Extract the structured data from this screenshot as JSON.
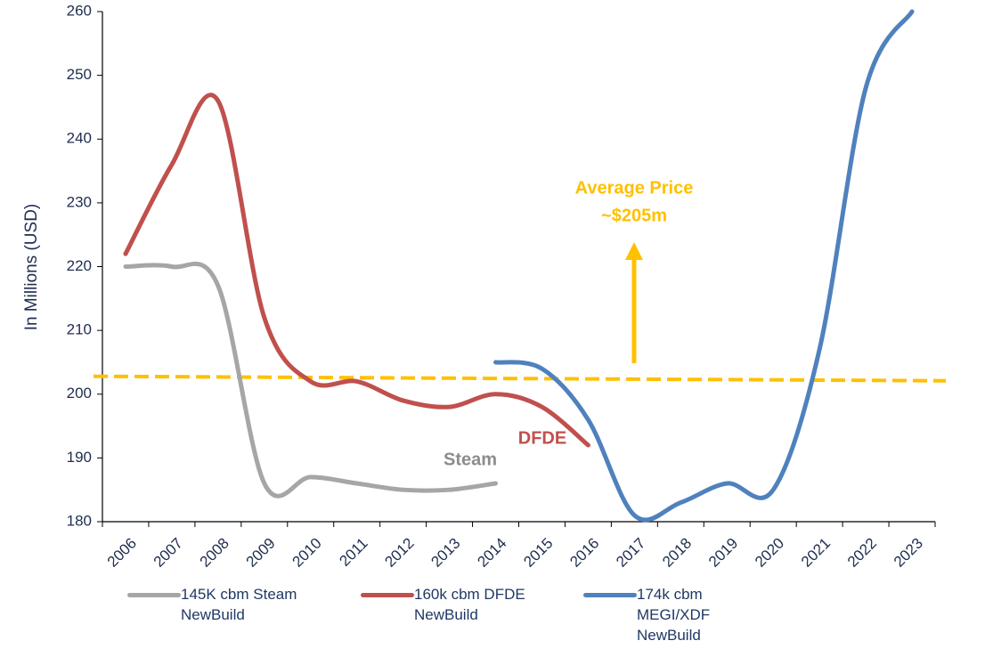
{
  "chart_data": {
    "type": "line",
    "y_label": "In Millions (USD)",
    "categories": [
      "2006",
      "2007",
      "2008",
      "2009",
      "2010",
      "2011",
      "2012",
      "2013",
      "2014",
      "2015",
      "2016",
      "2017",
      "2018",
      "2019",
      "2020",
      "2021",
      "2022",
      "2023"
    ],
    "series": [
      {
        "name": "145K cbm Steam NewBuild",
        "color": "#a6a6a6",
        "values": [
          220,
          220,
          217,
          186,
          187,
          186,
          185,
          185,
          186,
          null,
          null,
          null,
          null,
          null,
          null,
          null,
          null,
          null
        ]
      },
      {
        "name": "160k cbm DFDE NewBuild",
        "color": "#c0504d",
        "values": [
          222,
          236,
          246,
          212,
          202,
          202,
          199,
          198,
          200,
          198,
          192,
          null,
          null,
          null,
          null,
          null,
          null,
          null
        ]
      },
      {
        "name": "174k cbm MEGI/XDF NewBuild",
        "color": "#4f81bd",
        "values": [
          null,
          null,
          null,
          null,
          null,
          null,
          null,
          null,
          205,
          204,
          196,
          181,
          183,
          186,
          185,
          207,
          248,
          260
        ]
      }
    ],
    "average_line": {
      "values": [
        202.8,
        202.1
      ],
      "color": "#ffc000"
    },
    "annotations": {
      "average": "Average Price",
      "average_value": "~$205m",
      "steam": "Steam",
      "dfde": "DFDE"
    },
    "ylim": [
      180,
      260
    ],
    "yticks": [
      180,
      190,
      200,
      210,
      220,
      230,
      240,
      250,
      260
    ]
  }
}
